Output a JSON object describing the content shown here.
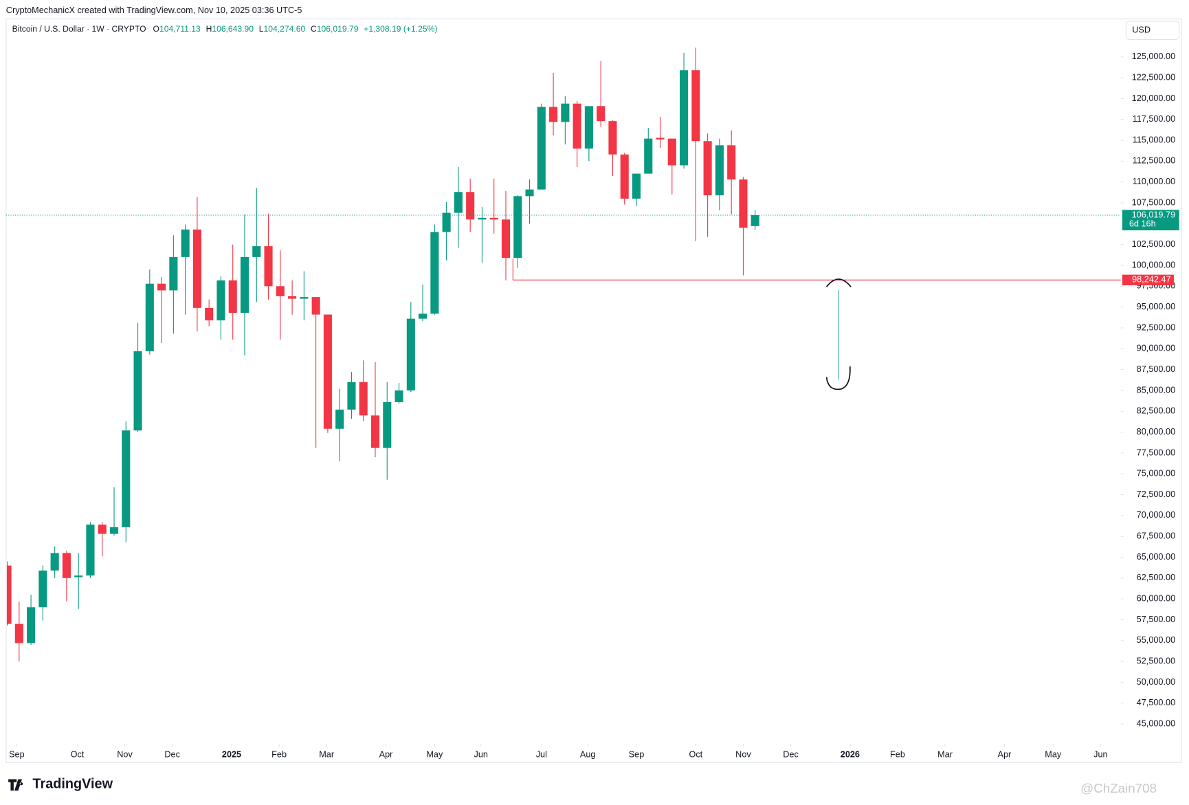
{
  "header": {
    "credit": "CryptoMechanicX created with TradingView.com, Nov 10, 2025 03:36 UTC-5",
    "symbol": "Bitcoin / U.S. Dollar · 1W · CRYPTO",
    "o_key": "O",
    "o": "104,711.13",
    "h_key": "H",
    "h": "106,643.90",
    "l_key": "L",
    "l": "104,274.60",
    "c_key": "C",
    "c": "106,019.79",
    "change": "+1,308.19 (+1.25%)",
    "currency": "USD"
  },
  "footer": {
    "logo": "TradingView",
    "watermark": "@ChZain708"
  },
  "chart_data": {
    "type": "candlestick",
    "up_color": "#089981",
    "down_color": "#f23645",
    "x": [
      0,
      1,
      2,
      3,
      4,
      5,
      6,
      7,
      8,
      9,
      10,
      11,
      12,
      13,
      14,
      15,
      16,
      17,
      18,
      19,
      20,
      21,
      22,
      23,
      24,
      25,
      26,
      27,
      28,
      29,
      30,
      31,
      32,
      33,
      34,
      35,
      36,
      37,
      38,
      39,
      40,
      41,
      42,
      43,
      44,
      45,
      46,
      47,
      48,
      49,
      50,
      51,
      52,
      53,
      54,
      55,
      56,
      57,
      58,
      59,
      60,
      61,
      62,
      63
    ],
    "open": [
      64000,
      57000,
      54700,
      59000,
      63400,
      65500,
      62600,
      62800,
      68900,
      67800,
      68600,
      80200,
      89700,
      97800,
      97000,
      101000,
      104300,
      94900,
      93400,
      98200,
      94300,
      101000,
      102300,
      97500,
      96300,
      96000,
      96200,
      94100,
      80400,
      82700,
      86000,
      82000,
      78100,
      83600,
      85000,
      93600,
      94200,
      104000,
      106300,
      108800,
      105500,
      105700,
      105500,
      100900,
      108300,
      109100,
      119000,
      117200,
      119400,
      114000,
      119100,
      117300,
      113300,
      108000,
      111000,
      115300,
      115200,
      112000,
      123400,
      114900,
      108400,
      114400,
      110300,
      104711.13
    ],
    "high": [
      64500,
      59700,
      60500,
      64000,
      66300,
      65800,
      65500,
      69200,
      69200,
      73400,
      81300,
      93100,
      99500,
      98600,
      103600,
      104900,
      108200,
      95900,
      98700,
      102500,
      106100,
      109300,
      106200,
      101800,
      98200,
      99300,
      96200,
      94100,
      85200,
      87200,
      88600,
      88400,
      86000,
      85900,
      95600,
      97700,
      104900,
      107600,
      111800,
      110400,
      107000,
      110400,
      108900,
      108400,
      110300,
      119400,
      123100,
      120300,
      119700,
      119100,
      124500,
      117400,
      113500,
      111000,
      116500,
      117800,
      115200,
      125500,
      126100,
      115800,
      115200,
      116200,
      110600,
      106643.9
    ],
    "low": [
      56800,
      52500,
      54500,
      57400,
      62500,
      59700,
      58800,
      62500,
      65100,
      67600,
      66800,
      80000,
      89300,
      90700,
      91800,
      94100,
      92100,
      92700,
      91100,
      91100,
      89200,
      95600,
      95900,
      91100,
      94100,
      93400,
      78100,
      79900,
      76500,
      81600,
      81300,
      77000,
      74300,
      83400,
      84800,
      93300,
      94100,
      100600,
      102100,
      104000,
      100300,
      103800,
      98200,
      99700,
      105000,
      109100,
      115600,
      114500,
      111800,
      112500,
      116600,
      110700,
      107300,
      107100,
      111000,
      114100,
      108500,
      111600,
      102900,
      103400,
      106600,
      106100,
      98800,
      104274.6
    ],
    "close": [
      57000,
      54700,
      59000,
      63400,
      65500,
      62500,
      62800,
      68900,
      67800,
      68600,
      80200,
      89700,
      97800,
      97000,
      101000,
      104300,
      94900,
      93400,
      98200,
      94300,
      101000,
      102300,
      97500,
      96300,
      96000,
      96200,
      94100,
      80400,
      82700,
      86000,
      82000,
      78100,
      83600,
      85000,
      93600,
      94200,
      104000,
      106300,
      108800,
      105500,
      105700,
      105500,
      100900,
      108300,
      109100,
      119000,
      117200,
      119400,
      114000,
      119100,
      117300,
      113300,
      108000,
      111000,
      115200,
      115100,
      112000,
      123400,
      114900,
      108400,
      114400,
      110300,
      104500,
      106019.79
    ],
    "xlim": [
      -0.1,
      93.8
    ],
    "xticks": [
      {
        "value": 0.8,
        "label": "Sep"
      },
      {
        "value": 5.9,
        "label": "Oct"
      },
      {
        "value": 9.9,
        "label": "Nov"
      },
      {
        "value": 13.9,
        "label": "Dec"
      },
      {
        "value": 18.9,
        "label": "2025"
      },
      {
        "value": 22.9,
        "label": "Feb"
      },
      {
        "value": 26.9,
        "label": "Mar"
      },
      {
        "value": 31.9,
        "label": "Apr"
      },
      {
        "value": 36.0,
        "label": "May"
      },
      {
        "value": 39.9,
        "label": "Jun"
      },
      {
        "value": 45.0,
        "label": "Jul"
      },
      {
        "value": 48.9,
        "label": "Aug"
      },
      {
        "value": 53.0,
        "label": "Sep"
      },
      {
        "value": 58.0,
        "label": "Oct"
      },
      {
        "value": 62.0,
        "label": "Nov"
      },
      {
        "value": 66.0,
        "label": "Dec"
      },
      {
        "value": 71.0,
        "label": "2026"
      },
      {
        "value": 75.0,
        "label": "Feb"
      },
      {
        "value": 79.0,
        "label": "Mar"
      },
      {
        "value": 84.0,
        "label": "Apr"
      },
      {
        "value": 88.1,
        "label": "May"
      },
      {
        "value": 92.1,
        "label": "Jun"
      }
    ],
    "ylim": [
      42650,
      129550
    ],
    "yticks": [
      {
        "value": 45000,
        "label": "45,000.00"
      },
      {
        "value": 47500,
        "label": "47,500.00"
      },
      {
        "value": 50000,
        "label": "50,000.00"
      },
      {
        "value": 52500,
        "label": "52,500.00"
      },
      {
        "value": 55000,
        "label": "55,000.00"
      },
      {
        "value": 57500,
        "label": "57,500.00"
      },
      {
        "value": 60000,
        "label": "60,000.00"
      },
      {
        "value": 62500,
        "label": "62,500.00"
      },
      {
        "value": 65000,
        "label": "65,000.00"
      },
      {
        "value": 67500,
        "label": "67,500.00"
      },
      {
        "value": 70000,
        "label": "70,000.00"
      },
      {
        "value": 72500,
        "label": "72,500.00"
      },
      {
        "value": 75000,
        "label": "75,000.00"
      },
      {
        "value": 77500,
        "label": "77,500.00"
      },
      {
        "value": 80000,
        "label": "80,000.00"
      },
      {
        "value": 82500,
        "label": "82,500.00"
      },
      {
        "value": 85000,
        "label": "85,000.00"
      },
      {
        "value": 87500,
        "label": "87,500.00"
      },
      {
        "value": 90000,
        "label": "90,000.00"
      },
      {
        "value": 92500,
        "label": "92,500.00"
      },
      {
        "value": 95000,
        "label": "95,000.00"
      },
      {
        "value": 97500,
        "label": "97,500.00"
      },
      {
        "value": 100000,
        "label": "100,000.00"
      },
      {
        "value": 102500,
        "label": "102,500.00"
      },
      {
        "value": 107500,
        "label": "107,500.00"
      },
      {
        "value": 110000,
        "label": "110,000.00"
      },
      {
        "value": 112500,
        "label": "112,500.00"
      },
      {
        "value": 115000,
        "label": "115,000.00"
      },
      {
        "value": 117500,
        "label": "117,500.00"
      },
      {
        "value": 120000,
        "label": "120,000.00"
      },
      {
        "value": 122500,
        "label": "122,500.00"
      },
      {
        "value": 125000,
        "label": "125,000.00"
      }
    ],
    "last_price": {
      "value": 106019.79,
      "label": "106,019.79",
      "countdown": "6d 16h",
      "color": "#089981"
    },
    "level": {
      "value": 98242.47,
      "label": "98,242.47",
      "start": 42.6,
      "color": "#f23645"
    }
  }
}
